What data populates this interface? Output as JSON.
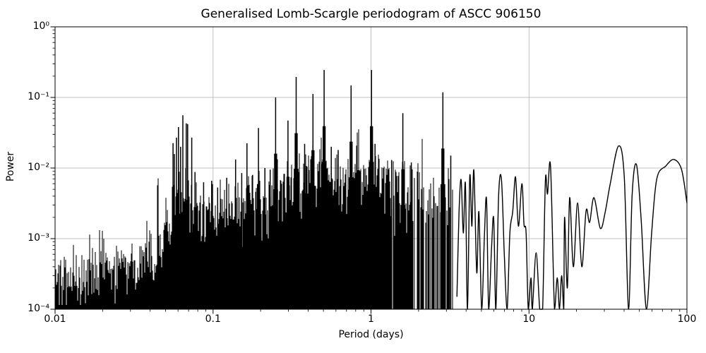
{
  "chart_data": {
    "type": "line",
    "title": "Generalised Lomb-Scargle periodogram of ASCC 906150",
    "xlabel": "Period (days)",
    "ylabel": "Power",
    "xscale": "log",
    "yscale": "log",
    "xlim": [
      0.01,
      100
    ],
    "ylim": [
      0.0001,
      1
    ],
    "grid": true,
    "legend": "none",
    "line_color": "#000000",
    "grid_color": "#b0b0b0",
    "background_color": "#ffffff",
    "x_ticks": [
      {
        "value": 0.01,
        "label": "0.01"
      },
      {
        "value": 0.1,
        "label": "0.1"
      },
      {
        "value": 1,
        "label": "1"
      },
      {
        "value": 10,
        "label": "10"
      },
      {
        "value": 100,
        "label": "100"
      }
    ],
    "y_ticks": [
      {
        "value": 1,
        "label": "10⁰"
      },
      {
        "value": 0.1,
        "label": "10⁻¹"
      },
      {
        "value": 0.01,
        "label": "10⁻²"
      },
      {
        "value": 0.001,
        "label": "10⁻³"
      },
      {
        "value": 0.0001,
        "label": "10⁻⁴"
      }
    ],
    "noise_envelope": [
      [
        0.01,
        0.00024
      ],
      [
        0.013,
        0.00027
      ],
      [
        0.016,
        0.00033
      ],
      [
        0.02,
        0.0004
      ],
      [
        0.026,
        0.00044
      ],
      [
        0.032,
        0.00047
      ],
      [
        0.04,
        0.00055
      ],
      [
        0.048,
        0.00075
      ],
      [
        0.053,
        0.0012
      ],
      [
        0.057,
        0.0028
      ],
      [
        0.062,
        0.0038
      ],
      [
        0.07,
        0.0035
      ],
      [
        0.076,
        0.0022
      ],
      [
        0.085,
        0.0018
      ],
      [
        0.1,
        0.0022
      ],
      [
        0.13,
        0.0026
      ],
      [
        0.17,
        0.003
      ],
      [
        0.22,
        0.0035
      ],
      [
        0.3,
        0.0045
      ],
      [
        0.38,
        0.006
      ],
      [
        0.47,
        0.0065
      ],
      [
        0.5,
        0.02
      ],
      [
        0.53,
        0.0065
      ],
      [
        0.65,
        0.007
      ],
      [
        0.8,
        0.007
      ],
      [
        0.97,
        0.0065
      ],
      [
        1.0,
        0.02
      ],
      [
        1.04,
        0.0065
      ],
      [
        1.2,
        0.0055
      ],
      [
        1.6,
        0.0045
      ],
      [
        2.0,
        0.0035
      ],
      [
        2.8,
        0.0035
      ],
      [
        2.85,
        0.012
      ],
      [
        2.92,
        0.0035
      ],
      [
        3.5,
        0.003
      ]
    ],
    "peaks": [
      [
        0.0558,
        0.0225
      ],
      [
        0.0569,
        0.0158
      ],
      [
        0.0587,
        0.027
      ],
      [
        0.0604,
        0.038
      ],
      [
        0.0623,
        0.02
      ],
      [
        0.0644,
        0.056
      ],
      [
        0.0677,
        0.043
      ],
      [
        0.0691,
        0.042
      ],
      [
        0.0733,
        0.027
      ],
      [
        0.0769,
        0.0088
      ],
      [
        0.0872,
        0.0063
      ],
      [
        0.098,
        0.0066
      ],
      [
        0.107,
        0.0053
      ],
      [
        0.122,
        0.0073
      ],
      [
        0.139,
        0.0132
      ],
      [
        0.152,
        0.0085
      ],
      [
        0.164,
        0.0224
      ],
      [
        0.178,
        0.008
      ],
      [
        0.194,
        0.037
      ],
      [
        0.213,
        0.01
      ],
      [
        0.23,
        0.0095
      ],
      [
        0.249,
        0.1
      ],
      [
        0.298,
        0.047
      ],
      [
        0.336,
        0.195
      ],
      [
        0.38,
        0.022
      ],
      [
        0.429,
        0.112
      ],
      [
        0.505,
        0.245
      ],
      [
        0.56,
        0.02
      ],
      [
        0.62,
        0.018
      ],
      [
        0.748,
        0.148
      ],
      [
        1.007,
        0.245
      ],
      [
        1.06,
        0.022
      ],
      [
        1.35,
        0.013
      ],
      [
        1.59,
        0.06
      ],
      [
        1.8,
        0.012
      ],
      [
        2.85,
        0.118
      ],
      [
        3.2,
        0.015
      ]
    ],
    "smooth_tail": [
      [
        3.5,
        0.00015
      ],
      [
        3.61,
        0.0024
      ],
      [
        3.72,
        0.0068
      ],
      [
        3.84,
        0.0012
      ],
      [
        3.96,
        0.006
      ],
      [
        4.08,
        0.0001
      ],
      [
        4.22,
        0.0076
      ],
      [
        4.35,
        0.0015
      ],
      [
        4.48,
        0.0093
      ],
      [
        4.67,
        0.00033
      ],
      [
        4.82,
        0.0024
      ],
      [
        5.02,
        0.0001
      ],
      [
        5.23,
        0.0012
      ],
      [
        5.39,
        0.0035
      ],
      [
        5.56,
        0.0001
      ],
      [
        5.8,
        0.00076
      ],
      [
        5.98,
        0.0019
      ],
      [
        6.17,
        0.0001
      ],
      [
        6.43,
        0.0042
      ],
      [
        6.7,
        0.0068
      ],
      [
        6.98,
        0.0006
      ],
      [
        7.27,
        0.0001
      ],
      [
        7.57,
        0.0012
      ],
      [
        7.89,
        0.0024
      ],
      [
        8.22,
        0.0075
      ],
      [
        8.57,
        0.0015
      ],
      [
        9.02,
        0.006
      ],
      [
        9.3,
        0.0016
      ],
      [
        9.59,
        0.0012
      ],
      [
        9.9,
        0.0001
      ],
      [
        10.3,
        0.00028
      ],
      [
        10.5,
        0.0001
      ],
      [
        11.1,
        0.00063
      ],
      [
        11.7,
        0.0001
      ],
      [
        12.2,
        0.0001
      ],
      [
        12.7,
        0.0066
      ],
      [
        13.1,
        0.0043
      ],
      [
        13.7,
        0.0105
      ],
      [
        14.5,
        0.0001
      ],
      [
        15.1,
        0.00028
      ],
      [
        15.6,
        0.0001
      ],
      [
        16.1,
        0.0003
      ],
      [
        16.6,
        0.0001
      ],
      [
        16.8,
        0.002
      ],
      [
        17.5,
        0.0002
      ],
      [
        18.1,
        0.0038
      ],
      [
        19.1,
        0.0004
      ],
      [
        20.3,
        0.0032
      ],
      [
        21.6,
        0.0004
      ],
      [
        23.0,
        0.0025
      ],
      [
        24.2,
        0.0017
      ],
      [
        25.8,
        0.0038
      ],
      [
        28.3,
        0.0014
      ],
      [
        30.4,
        0.0024
      ],
      [
        32.7,
        0.006
      ],
      [
        36.9,
        0.0205
      ],
      [
        40.1,
        0.0076
      ],
      [
        42.7,
        0.0001
      ],
      [
        45.0,
        0.0042
      ],
      [
        47.9,
        0.0112
      ],
      [
        51.3,
        0.0019
      ],
      [
        55.4,
        0.0001
      ],
      [
        59.8,
        0.0012
      ],
      [
        64.5,
        0.0071
      ],
      [
        73.5,
        0.0107
      ],
      [
        82.8,
        0.0132
      ],
      [
        92.5,
        0.0095
      ],
      [
        100,
        0.0032
      ]
    ],
    "noise": {
      "start_period": 0.01,
      "end_period": 3.5,
      "gap_start_period": 1.15,
      "max_gap_fraction": 0.55,
      "jitter_dex": 0.24,
      "boost_probability": 0.03,
      "boost_dex": 0.33,
      "seed": 42
    }
  }
}
